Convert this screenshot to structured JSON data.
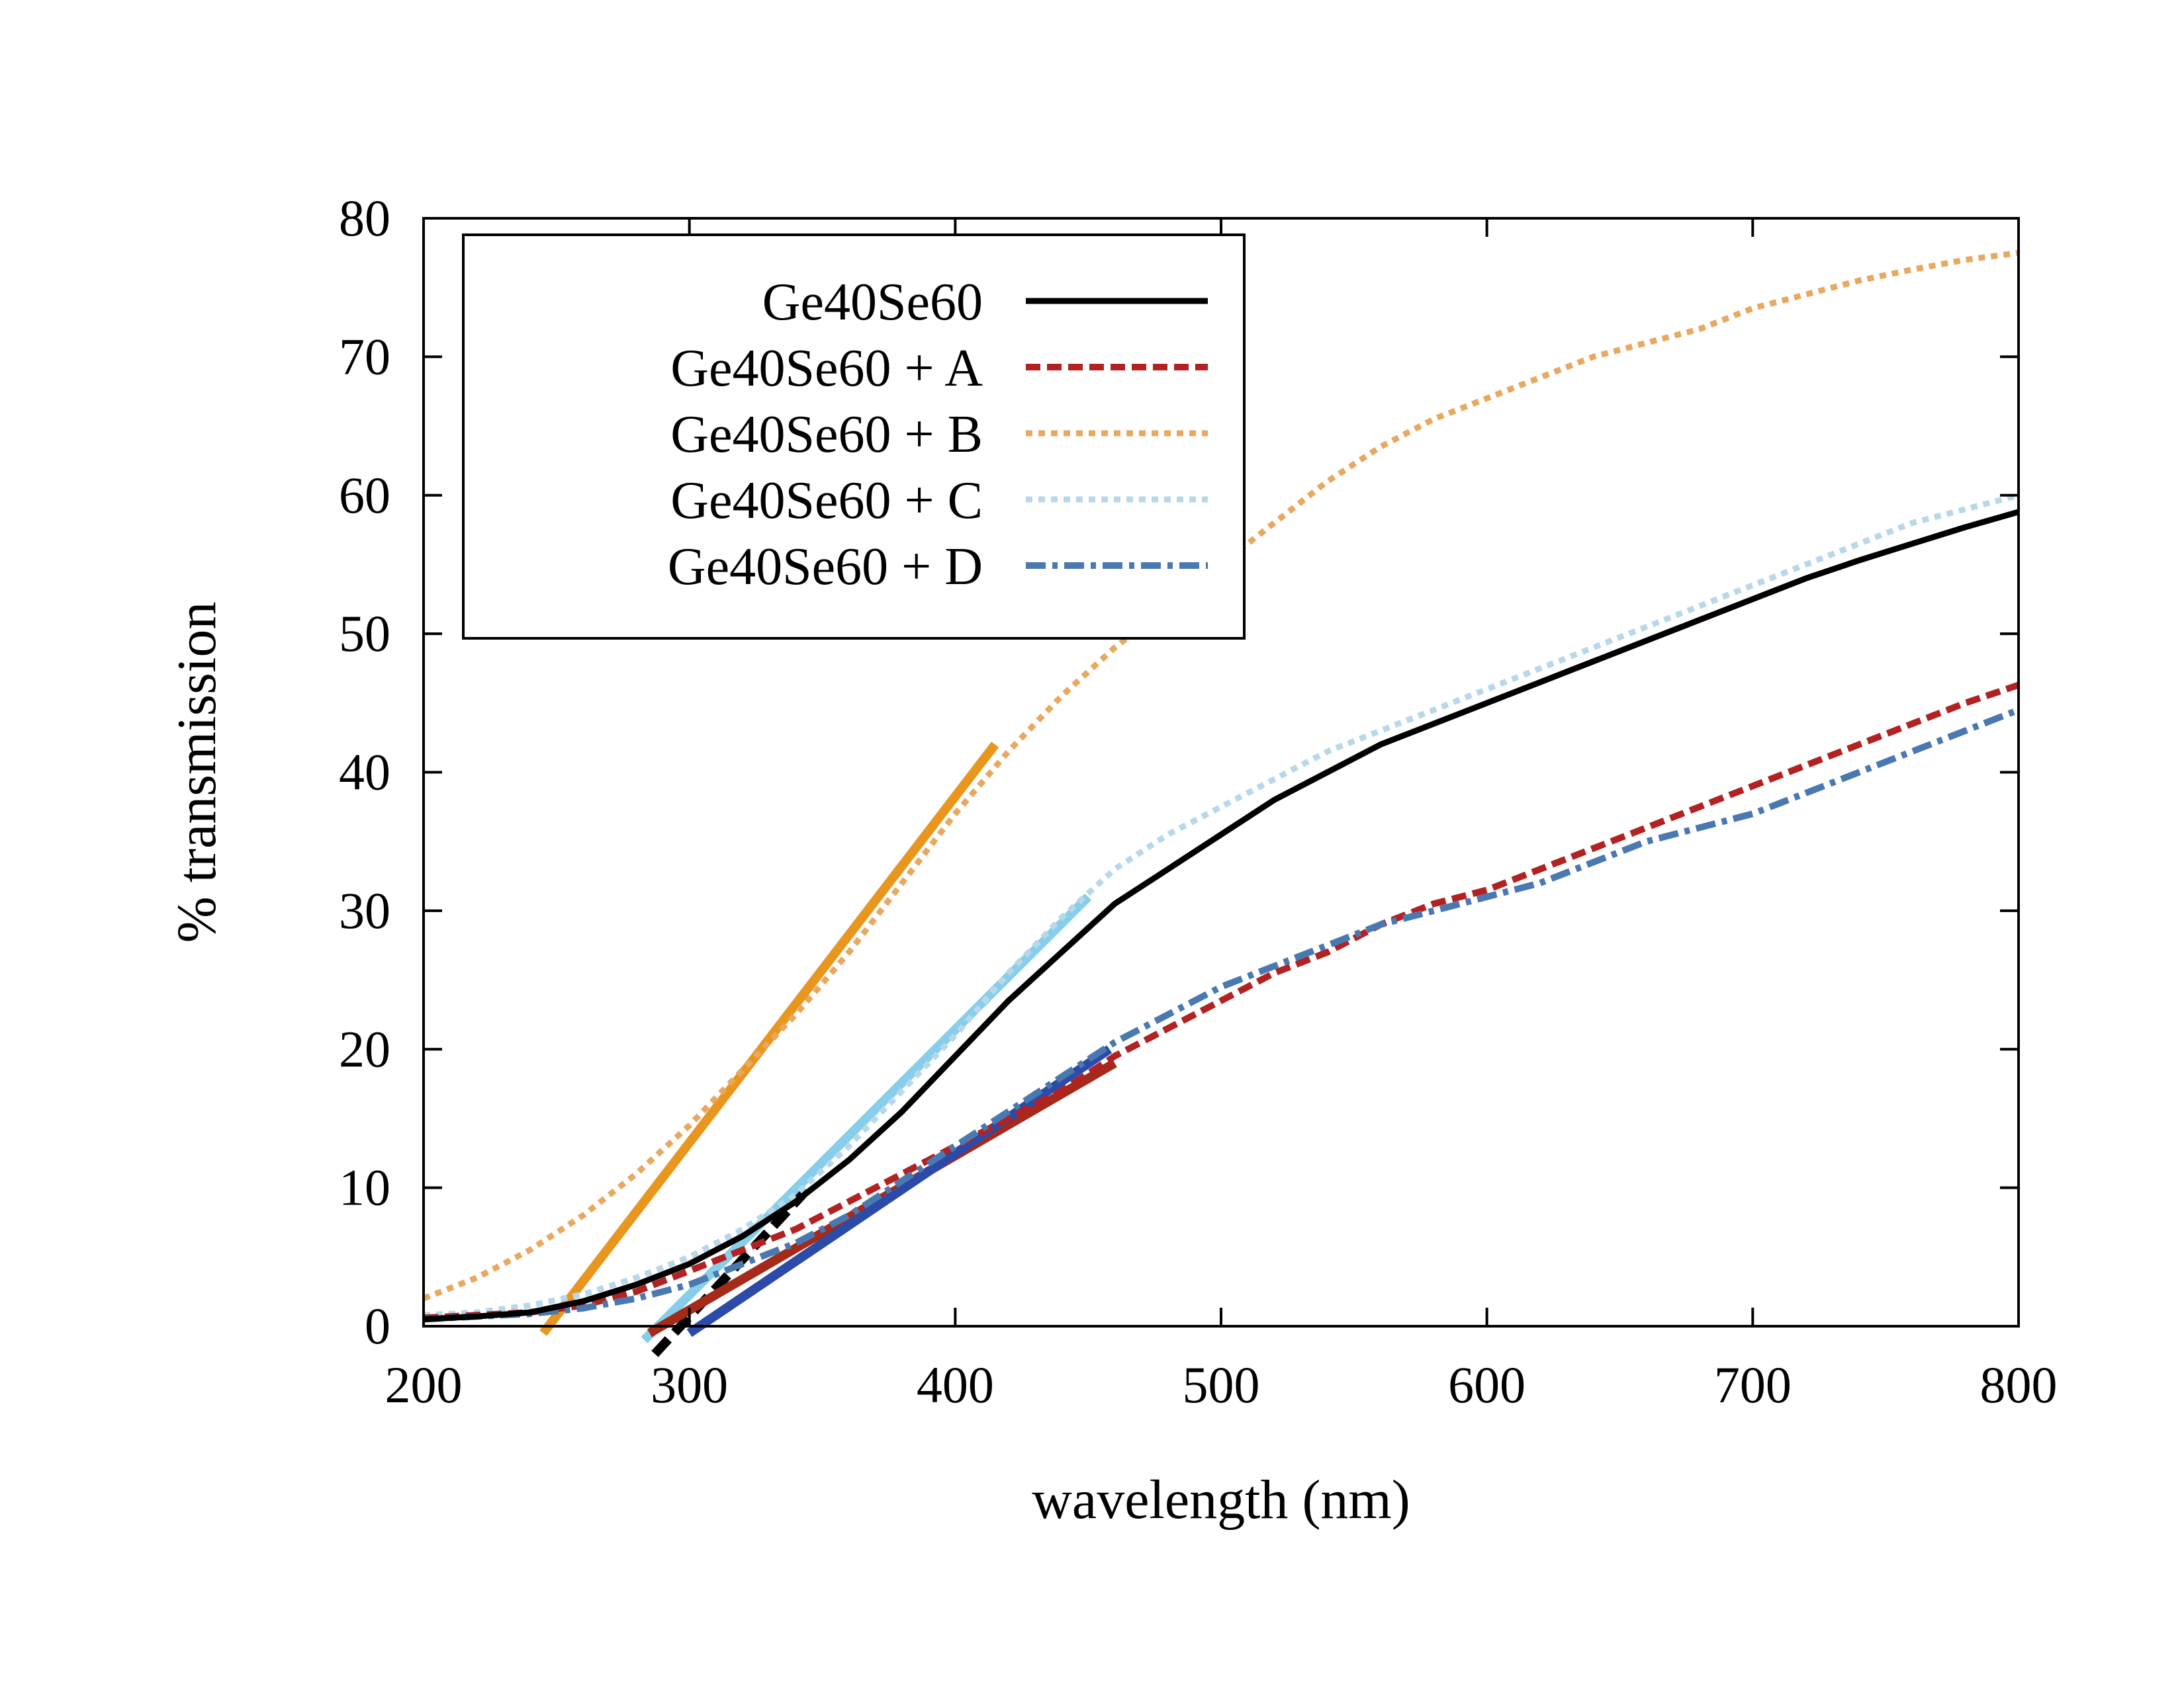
{
  "chart_data": {
    "type": "line",
    "title": "",
    "xlabel": "wavelength (nm)",
    "ylabel": "% transmission",
    "xlim": [
      200,
      800
    ],
    "ylim": [
      0,
      80
    ],
    "xticks": [
      200,
      300,
      400,
      500,
      600,
      700,
      800
    ],
    "yticks": [
      0,
      10,
      20,
      30,
      40,
      50,
      60,
      70,
      80
    ],
    "grid": false,
    "legend_position": "top-left",
    "series": [
      {
        "name": "Ge40Se60",
        "color": "#000000",
        "style": "solid",
        "x": [
          200,
          220,
          240,
          260,
          280,
          300,
          320,
          340,
          360,
          380,
          400,
          420,
          440,
          460,
          480,
          500,
          520,
          540,
          560,
          580,
          600,
          620,
          640,
          660,
          680,
          700,
          720,
          740,
          760,
          780,
          800
        ],
        "y": [
          0.5,
          0.7,
          1.0,
          1.8,
          3.0,
          4.5,
          6.5,
          9.0,
          12.0,
          15.5,
          19.5,
          23.5,
          27.0,
          30.5,
          33.0,
          35.5,
          38.0,
          40.0,
          42.0,
          43.5,
          45.0,
          46.5,
          48.0,
          49.5,
          51.0,
          52.5,
          54.0,
          55.3,
          56.5,
          57.7,
          58.8
        ]
      },
      {
        "name": "Ge40Se60 + A",
        "color": "#b22222",
        "style": "dashed",
        "x": [
          200,
          220,
          240,
          260,
          280,
          300,
          320,
          340,
          360,
          380,
          400,
          420,
          440,
          460,
          480,
          500,
          520,
          540,
          560,
          580,
          600,
          620,
          640,
          660,
          680,
          700,
          720,
          740,
          760,
          780,
          800
        ],
        "y": [
          0.6,
          0.8,
          1.0,
          1.5,
          2.5,
          4.0,
          5.5,
          7.0,
          9.0,
          11.0,
          13.0,
          15.0,
          17.0,
          19.5,
          21.5,
          23.5,
          25.5,
          27.0,
          29.0,
          30.5,
          31.5,
          33.0,
          34.5,
          36.0,
          37.5,
          39.0,
          40.5,
          42.0,
          43.5,
          45.0,
          46.3
        ]
      },
      {
        "name": "Ge40Se60 + B",
        "color": "#e8a860",
        "style": "dotted",
        "x": [
          200,
          220,
          240,
          260,
          280,
          300,
          320,
          340,
          360,
          380,
          400,
          420,
          440,
          460,
          480,
          500,
          520,
          540,
          560,
          580,
          600,
          620,
          640,
          660,
          680,
          700,
          720,
          740,
          760,
          780,
          800
        ],
        "y": [
          2.0,
          3.5,
          5.5,
          8.0,
          11.0,
          14.5,
          18.5,
          22.5,
          27.0,
          32.0,
          37.0,
          41.5,
          45.5,
          49.0,
          52.0,
          55.0,
          58.0,
          61.0,
          63.5,
          65.5,
          67.0,
          68.5,
          70.0,
          71.0,
          72.0,
          73.5,
          74.5,
          75.5,
          76.3,
          77.0,
          77.5
        ]
      },
      {
        "name": "Ge40Se60 + C",
        "color": "#b8d8ea",
        "style": "dotted",
        "x": [
          200,
          220,
          240,
          260,
          280,
          300,
          320,
          340,
          360,
          380,
          400,
          420,
          440,
          460,
          480,
          500,
          520,
          540,
          560,
          580,
          600,
          620,
          640,
          660,
          680,
          700,
          720,
          740,
          760,
          780,
          800
        ],
        "y": [
          0.8,
          1.0,
          1.5,
          2.3,
          3.5,
          5.0,
          7.0,
          9.5,
          13.0,
          17.0,
          21.0,
          25.5,
          29.5,
          33.0,
          35.5,
          37.5,
          39.5,
          41.5,
          43.0,
          44.5,
          46.0,
          47.5,
          49.0,
          50.5,
          52.0,
          53.5,
          55.0,
          56.5,
          58.0,
          59.0,
          60.0
        ]
      },
      {
        "name": "Ge40Se60 + D",
        "color": "#4a78b0",
        "style": "dashdot",
        "x": [
          200,
          220,
          240,
          260,
          280,
          300,
          320,
          340,
          360,
          380,
          400,
          420,
          440,
          460,
          480,
          500,
          520,
          540,
          560,
          580,
          600,
          620,
          640,
          660,
          680,
          700,
          720,
          740,
          760,
          780,
          800
        ],
        "y": [
          0.5,
          0.7,
          0.9,
          1.3,
          2.0,
          3.0,
          4.5,
          6.0,
          8.0,
          10.5,
          13.0,
          15.5,
          18.0,
          20.5,
          22.5,
          24.5,
          26.0,
          27.5,
          29.0,
          30.0,
          31.0,
          32.0,
          33.5,
          35.0,
          36.0,
          37.0,
          38.5,
          40.0,
          41.5,
          43.0,
          44.5
        ]
      }
    ],
    "fit_lines": [
      {
        "color": "#e8961e",
        "style": "solid",
        "x": [
          245,
          415
        ],
        "y": [
          -0.5,
          42
        ]
      },
      {
        "color": "#87ceeb",
        "style": "solid",
        "x": [
          283,
          450
        ],
        "y": [
          -1,
          31
        ]
      },
      {
        "color": "#000000",
        "style": "dashed",
        "x": [
          287,
          345
        ],
        "y": [
          -2,
          10
        ]
      },
      {
        "color": "#a52a1a",
        "style": "solid",
        "x": [
          285,
          460
        ],
        "y": [
          -0.5,
          19
        ]
      },
      {
        "color": "#2c4aa8",
        "style": "solid",
        "x": [
          300,
          458
        ],
        "y": [
          -0.5,
          20
        ]
      }
    ]
  }
}
